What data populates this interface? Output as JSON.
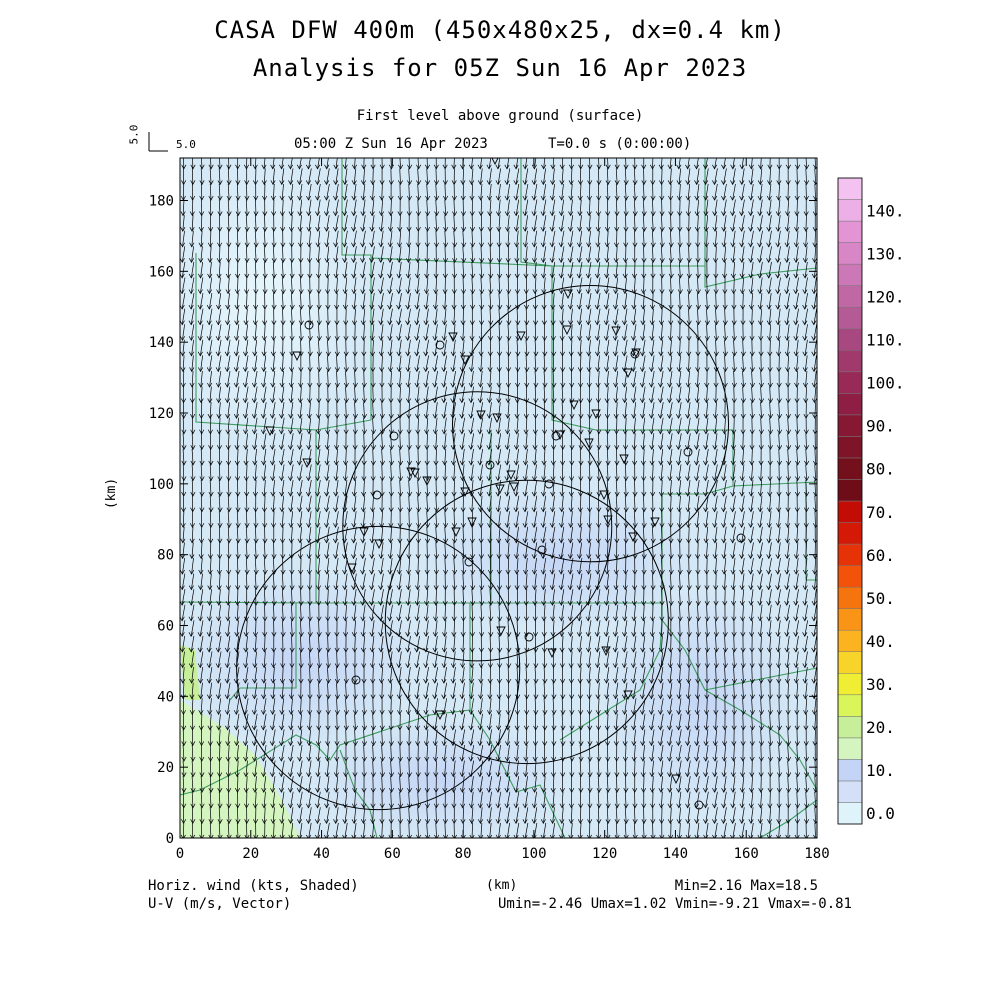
{
  "title_line1": "CASA DFW 400m (450x480x25, dx=0.4 km)",
  "title_line2": "Analysis for 05Z Sun 16 Apr 2023",
  "subtitle": "First level above ground (surface)",
  "valid_time": "05:00 Z Sun 16 Apr 2023",
  "model_time": "T=0.0 s (0:00:00)",
  "ref_vector": {
    "label": "5.0",
    "vertical_label": "5.0"
  },
  "footer": {
    "shaded_label": "Horiz. wind (kts, Shaded)",
    "vector_label": "U-V (m/s, Vector)",
    "minmax": "Min=2.16 Max=18.5",
    "uv_range": "Umin=-2.46 Umax=1.02 Vmin=-9.21 Vmax=-0.81"
  },
  "chart_data": {
    "type": "heatmap",
    "title": "CASA DFW 400m (450x480x25, dx=0.4 km)",
    "xlabel": "(km)",
    "ylabel": "(km)",
    "xlim": [
      0,
      180
    ],
    "ylim": [
      0,
      192
    ],
    "x_ticks": [
      0,
      20,
      40,
      60,
      80,
      100,
      120,
      140,
      160,
      180
    ],
    "y_ticks": [
      0,
      20,
      40,
      60,
      80,
      100,
      120,
      140,
      160,
      180
    ],
    "colorbar": {
      "levels": [
        0,
        5,
        10,
        15,
        20,
        25,
        30,
        35,
        40,
        45,
        50,
        55,
        60,
        65,
        70,
        75,
        80,
        85,
        90,
        95,
        100,
        105,
        110,
        115,
        120,
        125,
        130,
        135,
        140,
        145
      ],
      "tick_labels": [
        "0.0",
        "10.",
        "20.",
        "30.",
        "40.",
        "50.",
        "60.",
        "70.",
        "80.",
        "90.",
        "100.",
        "110.",
        "120.",
        "130.",
        "140."
      ],
      "colors": [
        "#dff3fb",
        "#d4e0f8",
        "#c4d4f6",
        "#d4f4c0",
        "#c7ef9a",
        "#d9f55a",
        "#f0ee34",
        "#f8d32a",
        "#fbb31f",
        "#f99417",
        "#f5740e",
        "#f25209",
        "#e53207",
        "#d41a06",
        "#c40c06",
        "#6e0d18",
        "#74101c",
        "#7e1428",
        "#861834",
        "#8e1e44",
        "#982a58",
        "#a03a6c",
        "#a84880",
        "#b45a94",
        "#c068a4",
        "#cc78b6",
        "#d886c6",
        "#e294d4",
        "#ecb0e6",
        "#f4c2f0"
      ]
    },
    "field_stats": {
      "min": 2.16,
      "max": 18.5,
      "umin": -2.46,
      "umax": 1.02,
      "vmin": -9.21,
      "vmax": -0.81
    },
    "radar_rings": [
      {
        "center_km": [
          116,
          117
        ],
        "radius_km": 39
      },
      {
        "center_km": [
          84,
          88
        ],
        "radius_km": 38
      },
      {
        "center_km": [
          98,
          61
        ],
        "radius_km": 40
      },
      {
        "center_km": [
          56,
          48
        ],
        "radius_km": 40
      }
    ]
  }
}
